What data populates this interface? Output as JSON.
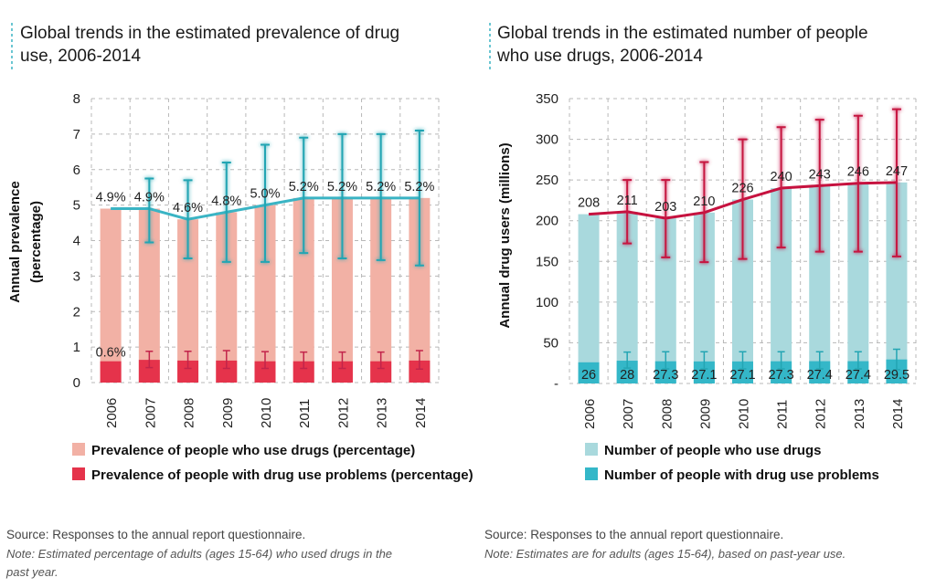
{
  "colors": {
    "prevalence_bar": "#f2b1a5",
    "problem_bar": "#e5334b",
    "prevalence_line": "#3ab4c4",
    "users_bar": "#a9d9dd",
    "users_problem_bar": "#34b7c8",
    "users_line": "#c6123f",
    "grid": "#b8b8b8"
  },
  "chart_data": [
    {
      "type": "bar",
      "title": "Global trends in the estimated prevalence of drug use, 2006-2014",
      "title_lines": [
        "Global trends in the estimated prevalence of drug",
        "use, 2006-2014"
      ],
      "ylabel_lines": [
        "Annual prevalence",
        "(percentage)"
      ],
      "ylim": [
        0,
        8
      ],
      "yticks": [
        "0",
        "1",
        "2",
        "3",
        "4",
        "5",
        "6",
        "7",
        "8"
      ],
      "grid": true,
      "legend_position": "bottom",
      "categories": [
        "2006",
        "2007",
        "2008",
        "2009",
        "2010",
        "2011",
        "2012",
        "2013",
        "2014"
      ],
      "series": [
        {
          "name": "Prevalence of people who use drugs (percentage)",
          "kind": "bar+line",
          "values": [
            4.9,
            4.9,
            4.6,
            4.8,
            5.0,
            5.2,
            5.2,
            5.2,
            5.2
          ],
          "labels": [
            "4.9%",
            "4.9%",
            "4.6%",
            "4.8%",
            "5.0%",
            "5.2%",
            "5.2%",
            "5.2%",
            "5.2%"
          ],
          "error_low": [
            null,
            3.95,
            3.5,
            3.4,
            3.4,
            3.65,
            3.5,
            3.45,
            3.3
          ],
          "error_high": [
            null,
            5.75,
            5.7,
            6.2,
            6.7,
            6.9,
            7.0,
            7.0,
            7.1
          ]
        },
        {
          "name": "Prevalence of people with drug use problems (percentage)",
          "kind": "bar",
          "values": [
            0.6,
            0.64,
            0.62,
            0.62,
            0.6,
            0.6,
            0.6,
            0.6,
            0.62
          ],
          "labels": [
            "0.6%",
            "",
            "",
            "",
            "",
            "",
            "",
            "",
            ""
          ],
          "error_low": [
            null,
            0.42,
            0.4,
            0.4,
            0.4,
            0.4,
            0.4,
            0.4,
            0.38
          ],
          "error_high": [
            null,
            0.88,
            0.88,
            0.9,
            0.87,
            0.86,
            0.86,
            0.86,
            0.9
          ]
        }
      ],
      "source": "Source: Responses to the annual report questionnaire.",
      "note_lines": [
        "Note: Estimated percentage of adults (ages 15-64) who used drugs in the",
        "past year."
      ]
    },
    {
      "type": "bar",
      "title": "Global trends in the estimated number of people who use drugs, 2006-2014",
      "title_lines": [
        "Global trends in the estimated number of people",
        "who use drugs, 2006-2014"
      ],
      "ylabel_lines": [
        "Annual drug users (millions)"
      ],
      "ylim": [
        0,
        350
      ],
      "yticks": [
        "-",
        "50",
        "100",
        "150",
        "200",
        "250",
        "300",
        "350"
      ],
      "grid": true,
      "legend_position": "bottom",
      "categories": [
        "2006",
        "2007",
        "2008",
        "2009",
        "2010",
        "2011",
        "2012",
        "2013",
        "2014"
      ],
      "series": [
        {
          "name": "Number of people who use drugs",
          "kind": "bar+line",
          "values": [
            208,
            211,
            203,
            210,
            226,
            240,
            243,
            246,
            247
          ],
          "labels": [
            "208",
            "211",
            "203",
            "210",
            "226",
            "240",
            "243",
            "246",
            "247"
          ],
          "error_low": [
            null,
            172,
            155,
            149,
            153,
            167,
            162,
            162,
            156
          ],
          "error_high": [
            null,
            250,
            250,
            272,
            300,
            315,
            324,
            329,
            337
          ]
        },
        {
          "name": "Number of people with drug use problems",
          "kind": "bar",
          "values": [
            26,
            28,
            27.3,
            27.1,
            27.1,
            27.3,
            27.4,
            27.4,
            29.5
          ],
          "labels": [
            "26",
            "28",
            "27.3",
            "27.1",
            "27.1",
            "27.3",
            "27.4",
            "27.4",
            "29.5"
          ],
          "error_low": [
            null,
            19,
            18,
            18,
            18,
            18,
            18,
            18,
            17
          ],
          "error_high": [
            null,
            38.5,
            39,
            39,
            39,
            39,
            39,
            39,
            42
          ]
        }
      ],
      "source": "Source: Responses to the annual report questionnaire.",
      "note_lines": [
        "Note: Estimates are for adults (ages 15-64), based on past-year use."
      ]
    }
  ]
}
